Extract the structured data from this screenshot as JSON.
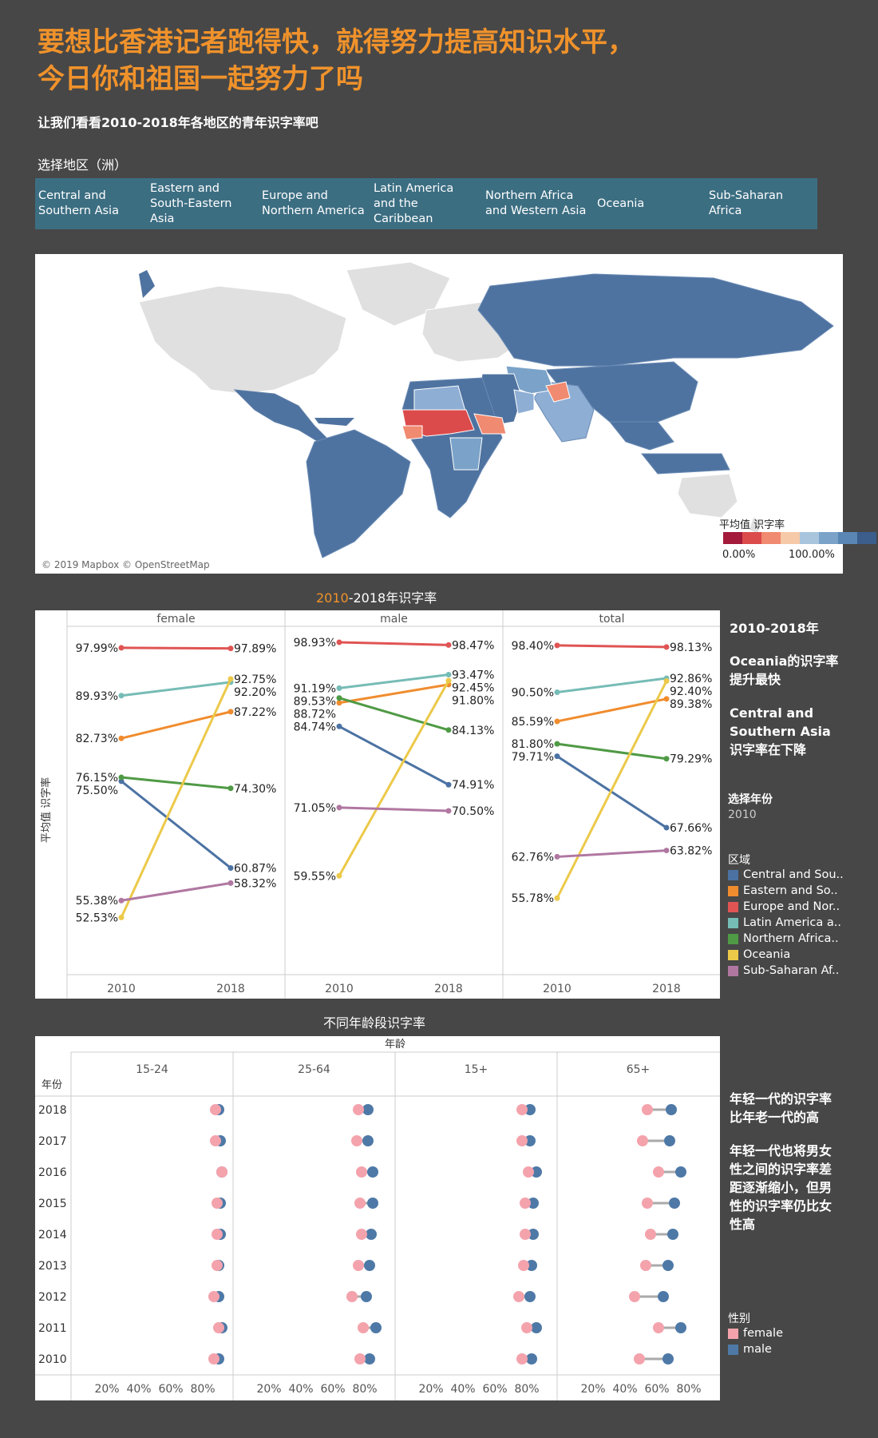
{
  "header": {
    "title_line1": "要想比香港记者跑得快，就得努力提高知识水平，",
    "title_line2": "今日你和祖国一起努力了吗",
    "subtitle": "让我们看看2010-2018年各地区的青年识字率吧"
  },
  "region_filter": {
    "label": "选择地区（洲）",
    "items": [
      "Central and Southern Asia",
      "Eastern and South-Eastern Asia",
      "Europe and Northern America",
      "Latin America and the Caribbean",
      "Northern Africa and Western Asia",
      "Oceania",
      "Sub-Saharan Africa"
    ]
  },
  "map": {
    "credit": "© 2019 Mapbox © OpenStreetMap",
    "legend_title": "平均值 识字率",
    "legend_min": "0.00%",
    "legend_max": "100.00%",
    "ramp_colors": [
      "#a31a3b",
      "#dc4b4b",
      "#f08a70",
      "#f6c9a8",
      "#a9c5de",
      "#7ba3c9",
      "#5a86b5",
      "#3b5e8c"
    ]
  },
  "colors": {
    "Central and Southern Asia": "#4b72a3",
    "Eastern and South-Eastern Asia": "#f08c2e",
    "Europe and Northern America": "#e05454",
    "Latin America and the Caribbean": "#76bcb6",
    "Northern Africa and Western Asia": "#4f9a45",
    "Oceania": "#ecc949",
    "Sub-Saharan Africa": "#b077a1",
    "female": "#f4a3ac",
    "male": "#4e79a7"
  },
  "slope_chart": {
    "section_title_accent": "2010",
    "section_title_rest": "-2018年识字率",
    "ylabel": "平均值 识字率",
    "years": [
      "2010",
      "2018"
    ]
  },
  "chart_data": [
    {
      "type": "line",
      "title": "2010-2018年识字率",
      "ylabel": "平均值 识字率",
      "x": [
        "2010",
        "2018"
      ],
      "ylim": [
        48,
        100
      ],
      "panels": [
        {
          "name": "female",
          "series": [
            {
              "name": "Central and Southern Asia",
              "values": [
                75.5,
                60.87
              ]
            },
            {
              "name": "Eastern and South-Eastern Asia",
              "values": [
                82.73,
                87.22
              ]
            },
            {
              "name": "Europe and Northern America",
              "values": [
                97.99,
                97.89
              ]
            },
            {
              "name": "Latin America and the Caribbean",
              "values": [
                89.93,
                92.2
              ]
            },
            {
              "name": "Northern Africa and Western Asia",
              "values": [
                76.15,
                74.3
              ]
            },
            {
              "name": "Oceania",
              "values": [
                52.53,
                92.75
              ]
            },
            {
              "name": "Sub-Saharan Africa",
              "values": [
                55.38,
                58.32
              ]
            }
          ]
        },
        {
          "name": "male",
          "series": [
            {
              "name": "Central and Southern Asia",
              "values": [
                84.74,
                74.91
              ]
            },
            {
              "name": "Eastern and South-Eastern Asia",
              "values": [
                88.72,
                91.8
              ]
            },
            {
              "name": "Europe and Northern America",
              "values": [
                98.93,
                98.47
              ]
            },
            {
              "name": "Latin America and the Caribbean",
              "values": [
                91.19,
                93.47
              ]
            },
            {
              "name": "Northern Africa and Western Asia",
              "values": [
                89.53,
                84.13
              ]
            },
            {
              "name": "Oceania",
              "values": [
                59.55,
                92.45
              ]
            },
            {
              "name": "Sub-Saharan Africa",
              "values": [
                71.05,
                70.5
              ]
            }
          ]
        },
        {
          "name": "total",
          "series": [
            {
              "name": "Central and Southern Asia",
              "values": [
                79.71,
                67.66
              ]
            },
            {
              "name": "Eastern and South-Eastern Asia",
              "values": [
                85.59,
                89.38
              ]
            },
            {
              "name": "Europe and Northern America",
              "values": [
                98.4,
                98.13
              ]
            },
            {
              "name": "Latin America and the Caribbean",
              "values": [
                90.5,
                92.86
              ]
            },
            {
              "name": "Northern Africa and Western Asia",
              "values": [
                81.8,
                79.29
              ]
            },
            {
              "name": "Oceania",
              "values": [
                55.78,
                92.4
              ]
            },
            {
              "name": "Sub-Saharan Africa",
              "values": [
                62.76,
                63.82
              ]
            }
          ]
        }
      ]
    },
    {
      "type": "scatter",
      "title": "不同年龄段识字率",
      "column_header": "年龄",
      "row_header": "年份",
      "age_groups": [
        "15-24",
        "25-64",
        "15+",
        "65+"
      ],
      "years": [
        "2018",
        "2017",
        "2016",
        "2015",
        "2014",
        "2013",
        "2012",
        "2011",
        "2010"
      ],
      "x_ticks": [
        "20%",
        "40%",
        "60%",
        "80%"
      ],
      "xlim": [
        0,
        100
      ],
      "female": {
        "15-24": [
          88,
          88,
          92,
          89,
          89,
          89,
          87,
          90,
          87
        ],
        "25-64": [
          76,
          75,
          78,
          77,
          78,
          76,
          72,
          79,
          77
        ],
        "15+": [
          77,
          77,
          81,
          79,
          79,
          78,
          75,
          80,
          77
        ],
        "65+": [
          54,
          51,
          61,
          54,
          56,
          53,
          46,
          61,
          49
        ]
      },
      "male": {
        "15-24": [
          90,
          91,
          92,
          91,
          91,
          90,
          90,
          92,
          90
        ],
        "25-64": [
          82,
          82,
          85,
          85,
          84,
          83,
          81,
          87,
          83
        ],
        "15+": [
          82,
          82,
          86,
          84,
          84,
          83,
          82,
          86,
          83
        ],
        "65+": [
          69,
          68,
          75,
          71,
          70,
          67,
          64,
          75,
          67
        ]
      }
    }
  ],
  "notes": {
    "slope_1": "2010-2018年",
    "slope_2": "Oceania的识字率提升最快",
    "slope_3": "Central and Southern Asia识字率在下降",
    "year_select_label": "选择年份",
    "year_select_value": "2010",
    "region_legend_title": "区域",
    "region_legend_items": [
      "Central and Sou..",
      "Eastern and So..",
      "Europe and Nor..",
      "Latin America a..",
      "Northern Africa..",
      "Oceania",
      "Sub-Saharan Af.."
    ],
    "dot_1": "年轻一代的识字率比年老一代的高",
    "dot_2": "年轻一代也将男女性之间的识字率差距逐渐缩小，但男性的识字率仍比女性高",
    "gender_legend_title": "性别",
    "gender_legend_items": [
      "female",
      "male"
    ]
  },
  "age_chart": {
    "section_title": "不同年龄段识字率"
  }
}
